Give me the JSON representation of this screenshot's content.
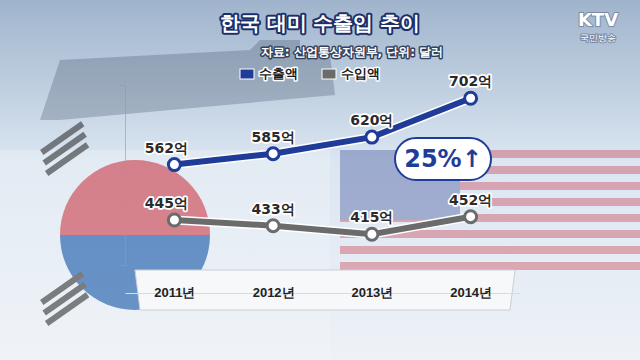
{
  "chart_data": {
    "type": "line",
    "title": "한국 대미 수출입 추이",
    "subtitle": "자료: 산업통상자원부, 단위: 달러",
    "categories": [
      "2011년",
      "2012년",
      "2013년",
      "2014년"
    ],
    "series": [
      {
        "name": "수출액",
        "color": "#1f3c99",
        "values": [
          562,
          585,
          620,
          702
        ],
        "value_labels": [
          "562억",
          "585억",
          "620억",
          "702억"
        ],
        "marker": "circle"
      },
      {
        "name": "수입액",
        "color": "#6b6b6b",
        "values": [
          445,
          433,
          415,
          452
        ],
        "value_labels": [
          "445억",
          "433억",
          "415억",
          "452억"
        ],
        "marker": "circle"
      }
    ],
    "ylim": [
      350,
      730
    ],
    "yticks": [],
    "tick_labels": "x",
    "data_labels": true,
    "legend": "top",
    "grid": false,
    "annotations": [
      "25%↑",
      "KTV",
      "국민방송"
    ]
  }
}
